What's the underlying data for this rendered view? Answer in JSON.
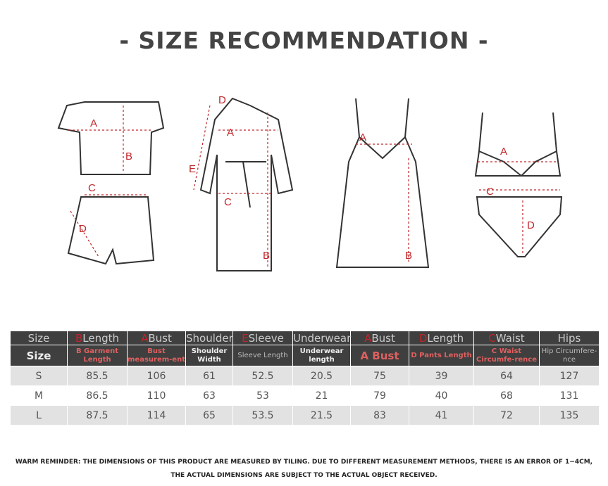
{
  "title": "- SIZE RECOMMENDATION -",
  "diagram_letters": {
    "a": "A",
    "b": "B",
    "c": "C",
    "d": "D",
    "e": "E"
  },
  "header1": [
    {
      "letter": "",
      "label": "Size"
    },
    {
      "letter": "B",
      "label": "Length"
    },
    {
      "letter": "A",
      "label": "Bust"
    },
    {
      "letter": "",
      "label": "Shoulder"
    },
    {
      "letter": "E",
      "label": "Sleeve"
    },
    {
      "letter": "",
      "label": "Underwear"
    },
    {
      "letter": "A",
      "label": "Bust"
    },
    {
      "letter": "D",
      "label": "Length"
    },
    {
      "letter": "C",
      "label": "Waist"
    },
    {
      "letter": "",
      "label": "Hips"
    }
  ],
  "header2": [
    "Size",
    "B Garment Length",
    "Bust measurem-ent",
    "Shoulder Width",
    "Sleeve Length",
    "Underwear length",
    "A Bust",
    "D Pants Length",
    "C Waist Circumfe-rence",
    "Hip Circumfere-nce"
  ],
  "rows": [
    [
      "S",
      "85.5",
      "106",
      "61",
      "52.5",
      "20.5",
      "75",
      "39",
      "64",
      "127"
    ],
    [
      "M",
      "86.5",
      "110",
      "63",
      "53",
      "21",
      "79",
      "40",
      "68",
      "131"
    ],
    [
      "L",
      "87.5",
      "114",
      "65",
      "53.5",
      "21.5",
      "83",
      "41",
      "72",
      "135"
    ]
  ],
  "notes": [
    "WARM REMINDER: THE DIMENSIONS OF THIS PRODUCT ARE MEASURED BY TILING. DUE TO DIFFERENT MEASUREMENT METHODS, THERE IS AN ERROR OF 1~4CM,",
    "THE ACTUAL DIMENSIONS ARE SUBJECT TO THE ACTUAL OBJECT RECEIVED."
  ],
  "colors": {
    "accent": "#c0262a",
    "header": "#3f3f3f",
    "stripe": "#e2e2e2"
  }
}
